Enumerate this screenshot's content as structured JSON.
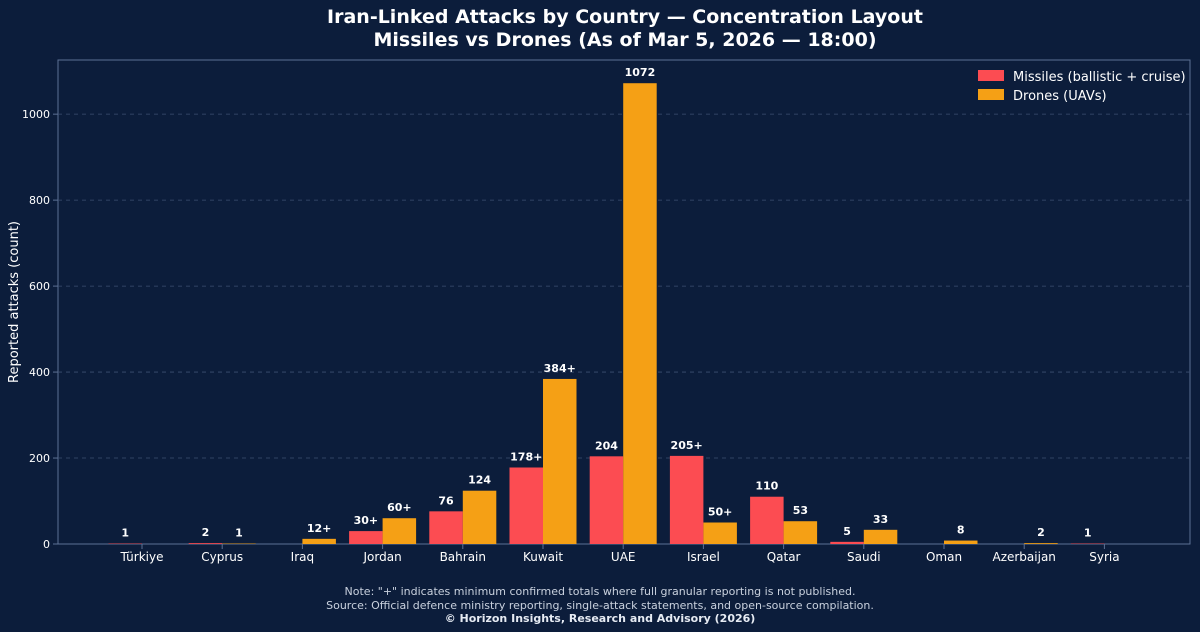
{
  "colors": {
    "background": "#0c1d3b",
    "missiles": "#fc4c52",
    "drones": "#f5a015",
    "grid": "#3b4f72",
    "axis": "#5d7194",
    "text": "#ffffff",
    "note_text": "#c9d1de"
  },
  "chart_data": {
    "type": "bar",
    "title_line1": "Iran-Linked Attacks by Country — Concentration Layout",
    "title_line2": "Missiles vs Drones (As of Mar 5, 2026 — 18:00)",
    "xlabel": "",
    "ylabel": "Reported attacks (count)",
    "ylim": [
      0,
      1126
    ],
    "yticks": [
      0,
      200,
      400,
      600,
      800,
      1000
    ],
    "grid": true,
    "legend_position": "top-right",
    "categories": [
      "Türkiye",
      "Cyprus",
      "Iraq",
      "Jordan",
      "Bahrain",
      "Kuwait",
      "UAE",
      "Israel",
      "Qatar",
      "Saudi",
      "Oman",
      "Azerbaijan",
      "Syria"
    ],
    "series": [
      {
        "name": "Missiles (ballistic + cruise)",
        "color_key": "missiles",
        "values": [
          1,
          2,
          0,
          30,
          76,
          178,
          204,
          205,
          110,
          5,
          0,
          0,
          1
        ],
        "labels": [
          "1",
          "2",
          "",
          "30+",
          "76",
          "178+",
          "204",
          "205+",
          "110",
          "5",
          "",
          "",
          "1"
        ]
      },
      {
        "name": "Drones (UAVs)",
        "color_key": "drones",
        "values": [
          0,
          1,
          12,
          60,
          124,
          384,
          1072,
          50,
          53,
          33,
          8,
          2,
          0
        ],
        "labels": [
          "",
          "1",
          "12+",
          "60+",
          "124",
          "384+",
          "1072",
          "50+",
          "53",
          "33",
          "8",
          "2",
          ""
        ]
      }
    ]
  },
  "footer": {
    "note": "Note: \"+\" indicates minimum confirmed totals where full granular reporting is not published.",
    "source": "Source: Official defence ministry reporting, single-attack statements, and open-source compilation.",
    "copyright": "© Horizon Insights, Research and Advisory (2026)"
  }
}
